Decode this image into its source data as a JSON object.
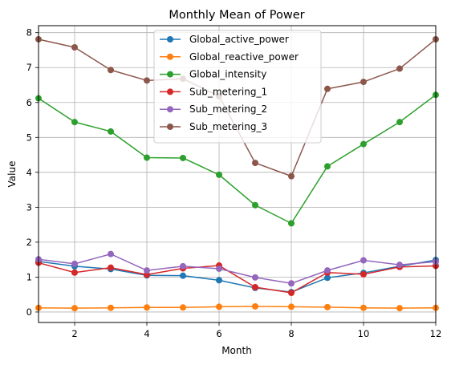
{
  "chart_data": {
    "type": "line",
    "title": "Monthly Mean of Power",
    "xlabel": "Month",
    "ylabel": "Value",
    "xlim": [
      1,
      12
    ],
    "ylim": [
      -0.3,
      8.2
    ],
    "xticks": [
      2,
      4,
      6,
      8,
      10,
      12
    ],
    "yticks": [
      0,
      1,
      2,
      3,
      4,
      5,
      6,
      7,
      8
    ],
    "grid": true,
    "legend_position": "top-center",
    "x": [
      1,
      2,
      3,
      4,
      5,
      6,
      7,
      8,
      9,
      10,
      11,
      12
    ],
    "series": [
      {
        "name": "Global_active_power",
        "color": "#1f77b4",
        "values": [
          1.45,
          1.31,
          1.23,
          1.05,
          1.04,
          0.91,
          0.69,
          0.57,
          0.98,
          1.12,
          1.31,
          1.49
        ]
      },
      {
        "name": "Global_reactive_power",
        "color": "#ff7f0e",
        "values": [
          0.12,
          0.11,
          0.12,
          0.13,
          0.13,
          0.15,
          0.16,
          0.15,
          0.14,
          0.12,
          0.11,
          0.12
        ]
      },
      {
        "name": "Global_intensity",
        "color": "#2ca02c",
        "values": [
          6.12,
          5.44,
          5.17,
          4.42,
          4.41,
          3.93,
          3.06,
          2.54,
          4.17,
          4.81,
          5.44,
          6.22
        ]
      },
      {
        "name": "Sub_metering_1",
        "color": "#d62728",
        "values": [
          1.41,
          1.13,
          1.27,
          1.07,
          1.25,
          1.33,
          0.71,
          0.55,
          1.13,
          1.08,
          1.29,
          1.32
        ]
      },
      {
        "name": "Sub_metering_2",
        "color": "#9467bd",
        "values": [
          1.51,
          1.38,
          1.66,
          1.19,
          1.31,
          1.24,
          0.99,
          0.82,
          1.19,
          1.48,
          1.35,
          1.44
        ]
      },
      {
        "name": "Sub_metering_3",
        "color": "#8c564b",
        "values": [
          7.81,
          7.58,
          6.93,
          6.63,
          6.68,
          6.18,
          4.27,
          3.89,
          6.39,
          6.59,
          6.97,
          7.81
        ]
      }
    ]
  }
}
